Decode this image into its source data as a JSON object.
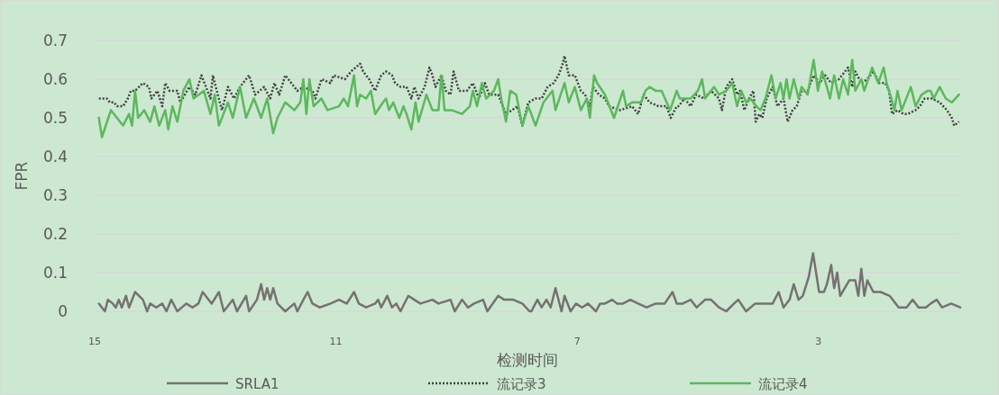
{
  "chart_data": {
    "type": "line",
    "xlabel": "检测时间",
    "ylabel": "FPR",
    "xlim": [
      15,
      0.65
    ],
    "xticks": [
      15,
      11,
      7,
      3
    ],
    "ylim": [
      0,
      0.7
    ],
    "yticks": [
      0,
      0.1,
      0.2,
      0.3,
      0.4,
      0.5,
      0.6,
      0.7
    ],
    "grid": "y",
    "legend": "bottom",
    "marker": "none",
    "series": [
      {
        "name": "SRLA1",
        "color": "#767171",
        "line_style": "solid",
        "x": [
          14.93,
          14.83,
          14.78,
          14.7,
          14.65,
          14.6,
          14.55,
          14.48,
          14.43,
          14.33,
          14.2,
          14.13,
          14.08,
          13.98,
          13.88,
          13.81,
          13.73,
          13.63,
          13.48,
          13.38,
          13.28,
          13.21,
          13.06,
          12.94,
          12.86,
          12.71,
          12.64,
          12.49,
          12.44,
          12.31,
          12.24,
          12.19,
          12.14,
          12.09,
          12.04,
          11.97,
          11.84,
          11.69,
          11.64,
          11.54,
          11.47,
          11.39,
          11.27,
          11.09,
          10.95,
          10.82,
          10.7,
          10.62,
          10.5,
          10.35,
          10.3,
          10.25,
          10.15,
          10.07,
          10.0,
          9.93,
          9.8,
          9.7,
          9.6,
          9.4,
          9.3,
          9.1,
          9.03,
          8.91,
          8.81,
          8.71,
          8.56,
          8.49,
          8.31,
          8.21,
          8.06,
          7.91,
          7.79,
          7.76,
          7.66,
          7.59,
          7.51,
          7.44,
          7.36,
          7.26,
          7.21,
          7.11,
          7.02,
          6.92,
          6.82,
          6.69,
          6.62,
          6.54,
          6.42,
          6.34,
          6.24,
          6.12,
          5.99,
          5.85,
          5.7,
          5.55,
          5.42,
          5.35,
          5.25,
          5.12,
          5.02,
          4.88,
          4.78,
          4.65,
          4.53,
          4.4,
          4.33,
          4.2,
          4.05,
          3.91,
          3.76,
          3.66,
          3.58,
          3.48,
          3.41,
          3.33,
          3.26,
          3.16,
          3.09,
          2.99,
          2.91,
          2.86,
          2.79,
          2.74,
          2.69,
          2.64,
          2.49,
          2.39,
          2.34,
          2.29,
          2.24,
          2.19,
          2.09,
          1.97,
          1.82,
          1.67,
          1.54,
          1.44,
          1.34,
          1.22,
          1.14,
          1.04,
          0.95,
          0.8,
          0.65
        ],
        "values": [
          0.02,
          0.0,
          0.03,
          0.02,
          0.01,
          0.03,
          0.01,
          0.04,
          0.01,
          0.05,
          0.03,
          0.0,
          0.02,
          0.01,
          0.02,
          0.0,
          0.03,
          0.0,
          0.02,
          0.01,
          0.02,
          0.05,
          0.02,
          0.05,
          0.0,
          0.03,
          0.0,
          0.04,
          0.0,
          0.03,
          0.07,
          0.03,
          0.06,
          0.03,
          0.06,
          0.02,
          0.0,
          0.02,
          0.0,
          0.03,
          0.05,
          0.02,
          0.01,
          0.02,
          0.03,
          0.02,
          0.05,
          0.02,
          0.01,
          0.02,
          0.03,
          0.01,
          0.04,
          0.01,
          0.02,
          0.0,
          0.04,
          0.03,
          0.02,
          0.03,
          0.02,
          0.03,
          0.0,
          0.03,
          0.01,
          0.02,
          0.03,
          0.0,
          0.04,
          0.03,
          0.03,
          0.02,
          0.0,
          0.0,
          0.03,
          0.01,
          0.03,
          0.01,
          0.06,
          0.0,
          0.04,
          0.0,
          0.02,
          0.01,
          0.02,
          0.0,
          0.02,
          0.02,
          0.03,
          0.02,
          0.02,
          0.03,
          0.02,
          0.01,
          0.02,
          0.02,
          0.05,
          0.02,
          0.02,
          0.03,
          0.01,
          0.03,
          0.03,
          0.01,
          0.0,
          0.02,
          0.03,
          0.0,
          0.02,
          0.02,
          0.02,
          0.05,
          0.01,
          0.03,
          0.07,
          0.03,
          0.04,
          0.09,
          0.15,
          0.05,
          0.05,
          0.07,
          0.12,
          0.06,
          0.1,
          0.04,
          0.08,
          0.08,
          0.04,
          0.11,
          0.04,
          0.08,
          0.05,
          0.05,
          0.04,
          0.01,
          0.01,
          0.03,
          0.01,
          0.01,
          0.02,
          0.03,
          0.01,
          0.02,
          0.01
        ]
      },
      {
        "name": "流记录3",
        "color": "#404040",
        "line_style": "dotted",
        "x": [
          14.93,
          14.8,
          14.75,
          14.68,
          14.63,
          14.53,
          14.45,
          14.4,
          14.33,
          14.2,
          14.1,
          14.06,
          13.96,
          13.88,
          13.83,
          13.76,
          13.63,
          13.58,
          13.43,
          13.33,
          13.23,
          13.08,
          13.04,
          12.96,
          12.89,
          12.79,
          12.69,
          12.59,
          12.44,
          12.34,
          12.19,
          12.09,
          12.02,
          11.94,
          11.84,
          11.74,
          11.64,
          11.54,
          11.39,
          11.34,
          11.24,
          11.09,
          11.04,
          10.85,
          10.75,
          10.6,
          10.55,
          10.45,
          10.35,
          10.25,
          10.17,
          10.07,
          10.02,
          9.93,
          9.83,
          9.75,
          9.7,
          9.63,
          9.53,
          9.45,
          9.4,
          9.35,
          9.25,
          9.18,
          9.1,
          9.05,
          8.96,
          8.83,
          8.73,
          8.63,
          8.53,
          8.46,
          8.31,
          8.26,
          8.18,
          8.08,
          7.99,
          7.91,
          7.81,
          7.69,
          7.59,
          7.49,
          7.39,
          7.31,
          7.24,
          7.21,
          7.14,
          7.04,
          6.94,
          6.87,
          6.79,
          6.74,
          6.64,
          6.54,
          6.47,
          6.29,
          6.09,
          5.99,
          5.9,
          5.8,
          5.65,
          5.52,
          5.45,
          5.35,
          5.32,
          5.22,
          5.12,
          5.03,
          4.9,
          4.78,
          4.65,
          4.6,
          4.53,
          4.43,
          4.35,
          4.3,
          4.23,
          4.15,
          4.08,
          4.04,
          3.98,
          3.93,
          3.86,
          3.76,
          3.68,
          3.58,
          3.51,
          3.43,
          3.36,
          3.28,
          3.18,
          3.08,
          2.98,
          2.89,
          2.79,
          2.66,
          2.51,
          2.44,
          2.39,
          2.29,
          2.19,
          2.09,
          1.99,
          1.89,
          1.83,
          1.78,
          1.69,
          1.59,
          1.52,
          1.39,
          1.32,
          1.24,
          1.12,
          0.99,
          0.87,
          0.79,
          0.75,
          0.67
        ],
        "values": [
          0.55,
          0.55,
          0.54,
          0.54,
          0.53,
          0.53,
          0.55,
          0.57,
          0.57,
          0.59,
          0.58,
          0.55,
          0.57,
          0.53,
          0.59,
          0.57,
          0.57,
          0.54,
          0.58,
          0.56,
          0.61,
          0.55,
          0.61,
          0.56,
          0.52,
          0.58,
          0.55,
          0.58,
          0.61,
          0.56,
          0.58,
          0.55,
          0.59,
          0.56,
          0.61,
          0.59,
          0.57,
          0.58,
          0.57,
          0.55,
          0.6,
          0.59,
          0.61,
          0.6,
          0.62,
          0.64,
          0.62,
          0.6,
          0.57,
          0.61,
          0.62,
          0.61,
          0.59,
          0.58,
          0.58,
          0.55,
          0.58,
          0.55,
          0.58,
          0.63,
          0.61,
          0.58,
          0.61,
          0.57,
          0.56,
          0.62,
          0.57,
          0.57,
          0.59,
          0.55,
          0.59,
          0.56,
          0.56,
          0.54,
          0.51,
          0.52,
          0.53,
          0.48,
          0.54,
          0.55,
          0.55,
          0.58,
          0.59,
          0.61,
          0.64,
          0.66,
          0.61,
          0.61,
          0.57,
          0.56,
          0.53,
          0.58,
          0.56,
          0.55,
          0.53,
          0.52,
          0.53,
          0.51,
          0.56,
          0.54,
          0.53,
          0.53,
          0.5,
          0.53,
          0.53,
          0.55,
          0.53,
          0.56,
          0.55,
          0.57,
          0.55,
          0.52,
          0.58,
          0.6,
          0.56,
          0.57,
          0.52,
          0.55,
          0.57,
          0.49,
          0.51,
          0.5,
          0.55,
          0.58,
          0.53,
          0.55,
          0.49,
          0.52,
          0.53,
          0.57,
          0.57,
          0.61,
          0.59,
          0.61,
          0.59,
          0.6,
          0.63,
          0.58,
          0.62,
          0.59,
          0.6,
          0.62,
          0.59,
          0.59,
          0.57,
          0.51,
          0.52,
          0.51,
          0.51,
          0.52,
          0.53,
          0.55,
          0.55,
          0.54,
          0.52,
          0.5,
          0.48,
          0.49
        ]
      },
      {
        "name": "流记录4",
        "color": "#5cb85c",
        "line_style": "solid",
        "x": [
          14.93,
          14.88,
          14.73,
          14.53,
          14.43,
          14.38,
          14.33,
          14.28,
          14.18,
          14.08,
          14.01,
          13.93,
          13.83,
          13.78,
          13.71,
          13.63,
          13.53,
          13.43,
          13.36,
          13.19,
          13.08,
          13.01,
          12.94,
          12.79,
          12.71,
          12.59,
          12.49,
          12.36,
          12.24,
          12.14,
          12.04,
          11.97,
          11.84,
          11.69,
          11.59,
          11.54,
          11.49,
          11.44,
          11.37,
          11.24,
          11.14,
          10.95,
          10.87,
          10.8,
          10.7,
          10.65,
          10.6,
          10.5,
          10.42,
          10.35,
          10.22,
          10.17,
          10.12,
          10.05,
          9.95,
          9.88,
          9.83,
          9.75,
          9.68,
          9.63,
          9.5,
          9.4,
          9.3,
          9.25,
          9.2,
          9.08,
          8.91,
          8.78,
          8.73,
          8.66,
          8.58,
          8.51,
          8.38,
          8.31,
          8.26,
          8.18,
          8.11,
          8.01,
          7.91,
          7.81,
          7.69,
          7.56,
          7.41,
          7.36,
          7.21,
          7.14,
          7.04,
          6.94,
          6.84,
          6.79,
          6.72,
          6.67,
          6.54,
          6.39,
          6.24,
          6.19,
          6.09,
          5.94,
          5.87,
          5.8,
          5.7,
          5.6,
          5.46,
          5.35,
          5.3,
          5.22,
          5.12,
          5.0,
          4.93,
          4.88,
          4.73,
          4.65,
          4.53,
          4.43,
          4.35,
          4.28,
          4.2,
          4.13,
          4.03,
          3.96,
          3.88,
          3.78,
          3.71,
          3.63,
          3.58,
          3.53,
          3.48,
          3.41,
          3.33,
          3.28,
          3.18,
          3.08,
          3.01,
          2.94,
          2.86,
          2.81,
          2.74,
          2.66,
          2.59,
          2.51,
          2.44,
          2.39,
          2.29,
          2.24,
          2.11,
          2.01,
          1.92,
          1.87,
          1.79,
          1.74,
          1.69,
          1.62,
          1.47,
          1.39,
          1.29,
          1.19,
          1.14,
          1.09,
          0.99,
          0.89,
          0.79,
          0.67
        ],
        "values": [
          0.5,
          0.45,
          0.52,
          0.48,
          0.51,
          0.48,
          0.57,
          0.5,
          0.52,
          0.49,
          0.53,
          0.48,
          0.52,
          0.47,
          0.53,
          0.49,
          0.57,
          0.6,
          0.55,
          0.57,
          0.51,
          0.56,
          0.48,
          0.54,
          0.5,
          0.58,
          0.5,
          0.55,
          0.5,
          0.55,
          0.46,
          0.5,
          0.54,
          0.52,
          0.54,
          0.6,
          0.51,
          0.6,
          0.53,
          0.55,
          0.52,
          0.53,
          0.55,
          0.53,
          0.61,
          0.53,
          0.56,
          0.55,
          0.57,
          0.51,
          0.54,
          0.55,
          0.52,
          0.54,
          0.5,
          0.53,
          0.51,
          0.47,
          0.54,
          0.49,
          0.56,
          0.52,
          0.52,
          0.61,
          0.52,
          0.52,
          0.51,
          0.53,
          0.57,
          0.53,
          0.59,
          0.55,
          0.57,
          0.6,
          0.55,
          0.49,
          0.57,
          0.56,
          0.48,
          0.53,
          0.48,
          0.54,
          0.57,
          0.52,
          0.59,
          0.54,
          0.58,
          0.52,
          0.55,
          0.5,
          0.61,
          0.59,
          0.56,
          0.5,
          0.57,
          0.53,
          0.54,
          0.54,
          0.57,
          0.58,
          0.57,
          0.57,
          0.52,
          0.57,
          0.55,
          0.55,
          0.55,
          0.57,
          0.6,
          0.55,
          0.58,
          0.56,
          0.57,
          0.59,
          0.53,
          0.57,
          0.54,
          0.55,
          0.53,
          0.52,
          0.55,
          0.61,
          0.55,
          0.59,
          0.55,
          0.6,
          0.55,
          0.6,
          0.55,
          0.58,
          0.56,
          0.65,
          0.57,
          0.62,
          0.58,
          0.55,
          0.61,
          0.55,
          0.6,
          0.56,
          0.65,
          0.57,
          0.6,
          0.57,
          0.63,
          0.59,
          0.63,
          0.59,
          0.55,
          0.52,
          0.57,
          0.52,
          0.58,
          0.53,
          0.56,
          0.57,
          0.57,
          0.55,
          0.58,
          0.55,
          0.54,
          0.56
        ]
      }
    ]
  }
}
